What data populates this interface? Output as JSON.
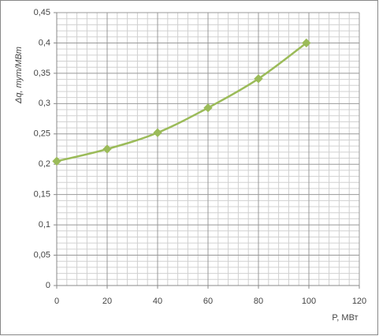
{
  "chart_data": {
    "type": "line",
    "xlabel": "P, МВт",
    "ylabel": "Δq, тут/МВт",
    "x": [
      0,
      20,
      40,
      60,
      80,
      99
    ],
    "series": [
      {
        "name": "Δq",
        "color": "#9bbb59",
        "values": [
          0.205,
          0.225,
          0.252,
          0.293,
          0.341,
          0.4
        ]
      }
    ],
    "xlim": [
      0,
      120
    ],
    "xticks": [
      0,
      20,
      40,
      60,
      80,
      100,
      120
    ],
    "ylim": [
      0,
      0.45
    ],
    "yticks": [
      0,
      {
        "value": 0.05,
        "label": "0,05"
      },
      {
        "value": 0.1,
        "label": "0,1"
      },
      {
        "value": 0.15,
        "label": "0,15"
      },
      {
        "value": 0.2,
        "label": "0,2"
      },
      {
        "value": 0.25,
        "label": "0,25"
      },
      {
        "value": 0.3,
        "label": "0,3"
      },
      {
        "value": 0.35,
        "label": "0,35"
      },
      {
        "value": 0.4,
        "label": "0,4"
      },
      {
        "value": 0.45,
        "label": "0,45"
      }
    ],
    "grid": true,
    "smooth": true,
    "marker": "diamond"
  }
}
